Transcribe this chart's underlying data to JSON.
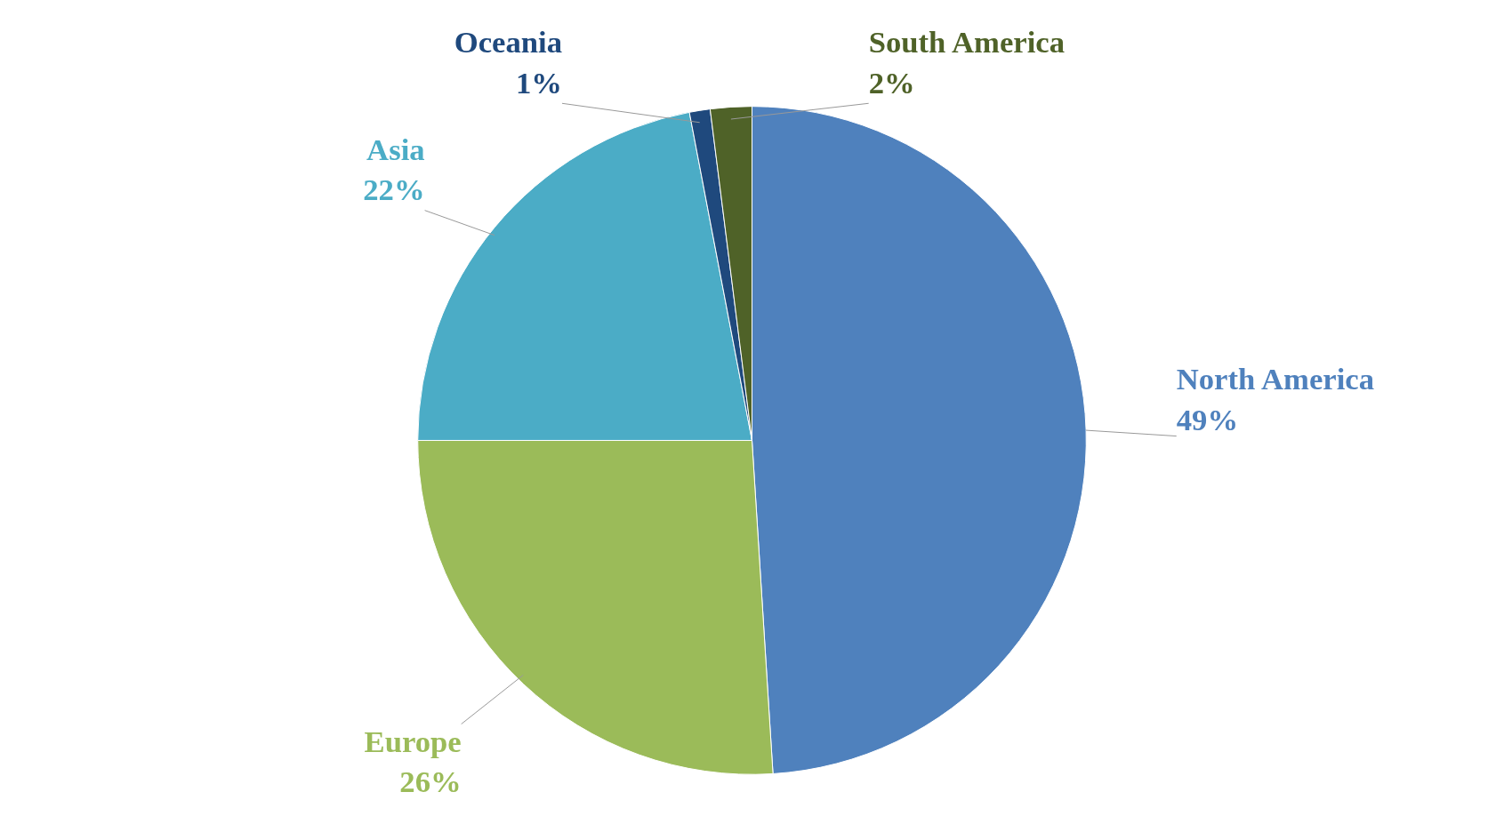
{
  "chart_data": {
    "type": "pie",
    "categories": [
      "North America",
      "Europe",
      "Asia",
      "Oceania",
      "South America"
    ],
    "values": [
      49,
      26,
      22,
      1,
      2
    ],
    "value_labels": [
      "49%",
      "26%",
      "22%",
      "1%",
      "2%"
    ],
    "colors": [
      "#4f81bd",
      "#9bbb59",
      "#4bacc6",
      "#1f497d",
      "#4f6228"
    ]
  }
}
